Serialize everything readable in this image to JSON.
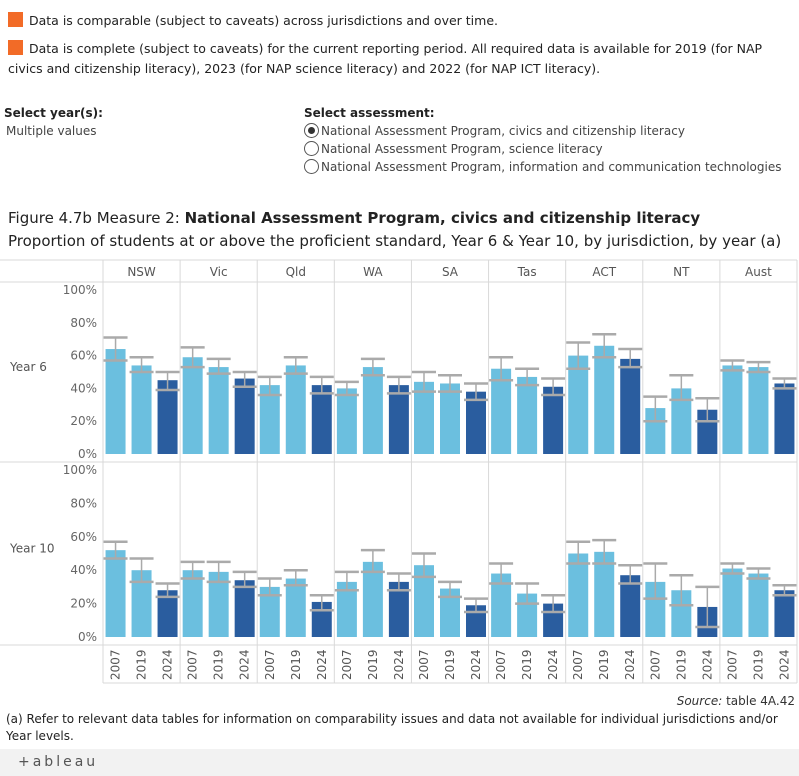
{
  "notes": [
    {
      "text": "Data is comparable (subject to caveats) across jurisdictions and over time.",
      "color": "#f26b27"
    },
    {
      "text": "Data is complete (subject to caveats) for the current reporting period. All required data is available for 2019 (for NAP civics and citizenship literacy), 2023 (for NAP science literacy) and 2022 (for NAP ICT literacy).",
      "color": "#f26b27"
    }
  ],
  "controls": {
    "year_label": "Select year(s):",
    "year_value": "Multiple values",
    "assessment_label": "Select assessment:",
    "options": [
      {
        "label": "National Assessment Program, civics and citizenship literacy",
        "selected": true
      },
      {
        "label": "National Assessment Program, science literacy",
        "selected": false
      },
      {
        "label": "National Assessment Program, information and communication technologies",
        "selected": false
      }
    ]
  },
  "figure": {
    "prefix": "Figure 4.7b Measure 2: ",
    "title": "National Assessment Program, civics and citizenship literacy",
    "subtitle": "Proportion of students at or above the proficient standard, Year 6 & Year 10, by jurisdiction, by year (a)"
  },
  "source": {
    "label": "Source:",
    "text": " table 4A.42"
  },
  "footnote": "(a) Refer to relevant data tables for information on comparability issues and data not available for individual jurisdictions and/or Year levels.",
  "brand": "+ableau",
  "chart_data": {
    "type": "bar",
    "jurisdictions": [
      "NSW",
      "Vic",
      "Qld",
      "WA",
      "SA",
      "Tas",
      "ACT",
      "NT",
      "Aust"
    ],
    "years": [
      "2007",
      "2019",
      "2024"
    ],
    "year_colors": {
      "2007": "#6bbfdf",
      "2019": "#6bbfdf",
      "2024": "#2a5d9f"
    },
    "error_bar_color": "#aaaaaa",
    "y_ticks": [
      "0%",
      "20%",
      "40%",
      "60%",
      "80%",
      "100%"
    ],
    "ylim": [
      0,
      100
    ],
    "panels": [
      {
        "label": "Year 6",
        "values": [
          [
            64,
            54,
            45
          ],
          [
            59,
            53,
            46
          ],
          [
            42,
            54,
            42
          ],
          [
            40,
            53,
            42
          ],
          [
            44,
            43,
            38
          ],
          [
            52,
            47,
            41
          ],
          [
            60,
            66,
            58
          ],
          [
            28,
            40,
            27
          ],
          [
            54,
            53,
            43
          ]
        ],
        "ci_low": [
          [
            57,
            50,
            39
          ],
          [
            53,
            49,
            41
          ],
          [
            36,
            49,
            37
          ],
          [
            36,
            48,
            37
          ],
          [
            38,
            38,
            33
          ],
          [
            45,
            42,
            36
          ],
          [
            52,
            59,
            53
          ],
          [
            20,
            33,
            20
          ],
          [
            51,
            50,
            40
          ]
        ],
        "ci_high": [
          [
            71,
            59,
            50
          ],
          [
            65,
            58,
            50
          ],
          [
            47,
            59,
            47
          ],
          [
            44,
            58,
            47
          ],
          [
            50,
            48,
            43
          ],
          [
            59,
            52,
            46
          ],
          [
            68,
            73,
            64
          ],
          [
            35,
            48,
            34
          ],
          [
            57,
            56,
            46
          ]
        ]
      },
      {
        "label": "Year 10",
        "values": [
          [
            52,
            40,
            28
          ],
          [
            40,
            39,
            34
          ],
          [
            30,
            35,
            21
          ],
          [
            33,
            45,
            33
          ],
          [
            43,
            29,
            19
          ],
          [
            38,
            26,
            20
          ],
          [
            50,
            51,
            37
          ],
          [
            33,
            28,
            18
          ],
          [
            41,
            38,
            28
          ]
        ],
        "ci_low": [
          [
            47,
            33,
            24
          ],
          [
            35,
            33,
            30
          ],
          [
            25,
            31,
            16
          ],
          [
            28,
            39,
            28
          ],
          [
            36,
            24,
            15
          ],
          [
            32,
            20,
            15
          ],
          [
            44,
            44,
            32
          ],
          [
            23,
            19,
            6
          ],
          [
            38,
            35,
            25
          ]
        ],
        "ci_high": [
          [
            57,
            47,
            32
          ],
          [
            45,
            45,
            39
          ],
          [
            35,
            40,
            25
          ],
          [
            39,
            52,
            38
          ],
          [
            50,
            33,
            23
          ],
          [
            44,
            32,
            25
          ],
          [
            57,
            58,
            43
          ],
          [
            44,
            37,
            30
          ],
          [
            44,
            41,
            31
          ]
        ]
      }
    ]
  }
}
